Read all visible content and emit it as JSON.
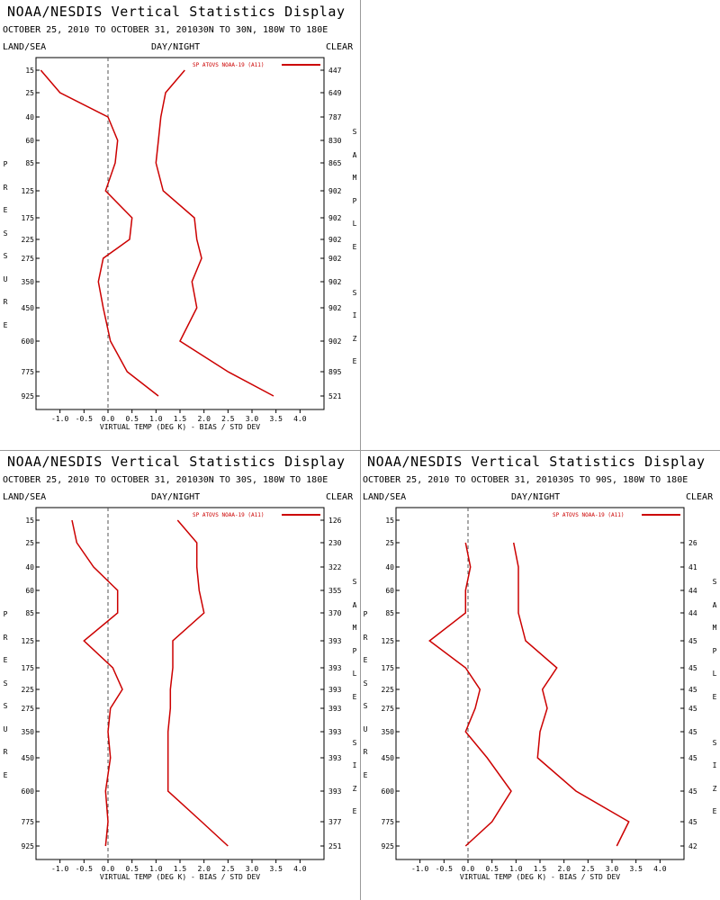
{
  "header": {
    "title": "NOAA/NESDIS Vertical Statistics Display",
    "land_sea": "LAND/SEA",
    "day_night": "DAY/NIGHT",
    "clear": "CLEAR",
    "left_axis_label": "PRESSURE",
    "right_axis_label": "SAMPLE SIZE"
  },
  "colors": {
    "series": "#cc0000",
    "zero_line": "#555555",
    "frame": "#000000"
  },
  "panels": [
    {
      "date_range": "OCTOBER 25, 2010 TO OCTOBER 31, 2010",
      "region": "30N TO 30N, 180W TO 180E"
    },
    {
      "date_range": "OCTOBER 25, 2010 TO OCTOBER 31, 2010",
      "region": "30N TO 30S, 180W TO 180E"
    },
    {
      "date_range": "OCTOBER 25, 2010 TO OCTOBER 31, 2010",
      "region": "30S TO 90S, 180W TO 180E"
    }
  ],
  "chart_data": [
    {
      "type": "line",
      "xlabel": "VIRTUAL TEMP (DEG K) - BIAS / STD DEV",
      "ylabel": "PRESSURE",
      "xlim": [
        -1.5,
        4.5
      ],
      "xticks": [
        "-1.0",
        "-0.5",
        "0.0",
        "0.5",
        "1.0",
        "1.5",
        "2.0",
        "2.5",
        "3.0",
        "3.5",
        "4.0"
      ],
      "levels": [
        15,
        25,
        40,
        60,
        85,
        125,
        175,
        225,
        275,
        350,
        450,
        600,
        775,
        925
      ],
      "sample_size": [
        447,
        649,
        787,
        830,
        865,
        902,
        902,
        902,
        902,
        902,
        902,
        902,
        895,
        521
      ],
      "legend": "SP ATOVS NOAA-19 (A11)",
      "series": [
        {
          "name": "bias",
          "values": [
            -1.4,
            -1.0,
            0.0,
            0.2,
            0.15,
            -0.05,
            0.5,
            0.45,
            -0.1,
            -0.2,
            -0.1,
            0.05,
            0.4,
            1.05
          ]
        },
        {
          "name": "std_dev",
          "values": [
            1.6,
            1.2,
            1.1,
            1.05,
            1.0,
            1.15,
            1.8,
            1.85,
            1.95,
            1.75,
            1.85,
            1.5,
            2.5,
            3.45
          ]
        }
      ]
    },
    {
      "type": "line",
      "xlabel": "VIRTUAL TEMP (DEG K) - BIAS / STD DEV",
      "ylabel": "PRESSURE",
      "xlim": [
        -1.5,
        4.5
      ],
      "xticks": [
        "-1.0",
        "-0.5",
        "0.0",
        "0.5",
        "1.0",
        "1.5",
        "2.0",
        "2.5",
        "3.0",
        "3.5",
        "4.0"
      ],
      "levels": [
        15,
        25,
        40,
        60,
        85,
        125,
        175,
        225,
        275,
        350,
        450,
        600,
        775,
        925
      ],
      "sample_size": [
        126,
        230,
        322,
        355,
        370,
        393,
        393,
        393,
        393,
        393,
        393,
        393,
        377,
        251
      ],
      "legend": "SP ATOVS NOAA-19 (A11)",
      "series": [
        {
          "name": "bias",
          "values": [
            -0.75,
            -0.65,
            -0.3,
            0.2,
            0.2,
            -0.5,
            0.1,
            0.3,
            0.05,
            0.0,
            0.05,
            -0.05,
            0.0,
            -0.05
          ]
        },
        {
          "name": "std_dev",
          "values": [
            1.45,
            1.85,
            1.85,
            1.9,
            2.0,
            1.35,
            1.35,
            1.3,
            1.3,
            1.25,
            1.25,
            1.25,
            1.95,
            2.5
          ]
        }
      ]
    },
    {
      "type": "line",
      "xlabel": "VIRTUAL TEMP (DEG K) - BIAS / STD DEV",
      "ylabel": "PRESSURE",
      "xlim": [
        -1.5,
        4.5
      ],
      "xticks": [
        "-1.0",
        "-0.5",
        "0.0",
        "0.5",
        "1.0",
        "1.5",
        "2.0",
        "2.5",
        "3.0",
        "3.5",
        "4.0"
      ],
      "levels": [
        15,
        25,
        40,
        60,
        85,
        125,
        175,
        225,
        275,
        350,
        450,
        600,
        775,
        925
      ],
      "sample_size": [
        null,
        26,
        41,
        44,
        44,
        45,
        45,
        45,
        45,
        45,
        45,
        45,
        45,
        42
      ],
      "legend": "SP ATOVS NOAA-19 (A11)",
      "series": [
        {
          "name": "bias",
          "values": [
            null,
            -0.05,
            0.05,
            -0.05,
            -0.05,
            -0.8,
            -0.05,
            0.25,
            0.15,
            -0.05,
            0.4,
            0.9,
            0.5,
            -0.05
          ]
        },
        {
          "name": "std_dev",
          "values": [
            null,
            0.95,
            1.05,
            1.05,
            1.05,
            1.2,
            1.85,
            1.55,
            1.65,
            1.5,
            1.45,
            2.25,
            3.35,
            3.1
          ]
        }
      ]
    }
  ]
}
